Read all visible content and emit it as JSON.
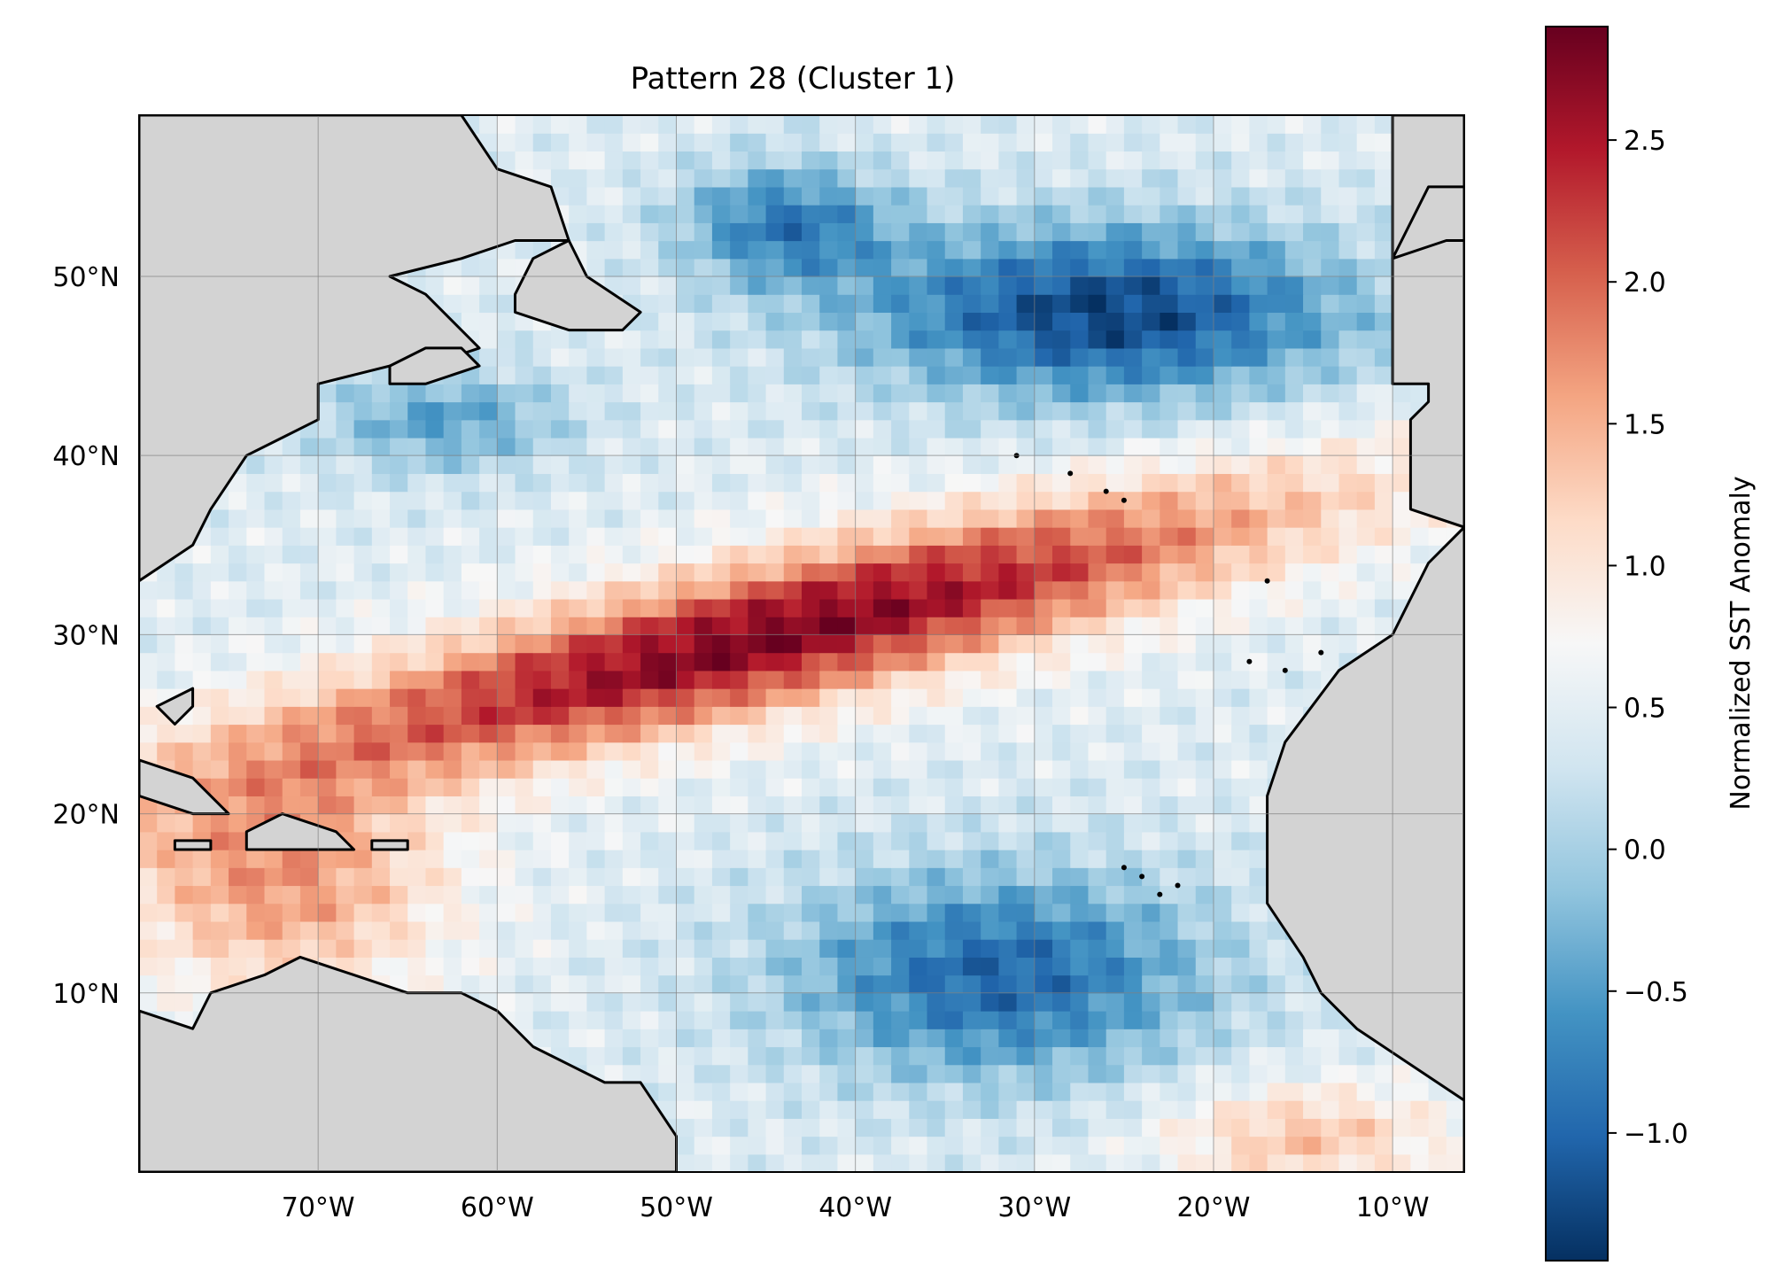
{
  "chart_data": {
    "type": "heatmap",
    "title": "Pattern 28 (Cluster 1)",
    "map": {
      "projection": "PlateCarree",
      "lon_range": [
        -80,
        -6
      ],
      "lat_range": [
        0,
        59
      ],
      "land_color": "#d3d3d3",
      "coastline_color": "#000000",
      "gridlines": true,
      "xticks": [
        {
          "value": -70,
          "label": "70°W"
        },
        {
          "value": -60,
          "label": "60°W"
        },
        {
          "value": -50,
          "label": "50°W"
        },
        {
          "value": -40,
          "label": "40°W"
        },
        {
          "value": -30,
          "label": "30°W"
        },
        {
          "value": -20,
          "label": "20°W"
        },
        {
          "value": -10,
          "label": "10°W"
        }
      ],
      "yticks": [
        {
          "value": 10,
          "label": "10°N"
        },
        {
          "value": 20,
          "label": "20°N"
        },
        {
          "value": 30,
          "label": "30°N"
        },
        {
          "value": 40,
          "label": "40°N"
        },
        {
          "value": 50,
          "label": "50°N"
        }
      ]
    },
    "field": {
      "grid_resolution_deg": 1,
      "description_of_pattern": [
        {
          "feature": "warm-band",
          "center_lon": -40,
          "center_lat": 29,
          "peak": 2.85
        },
        {
          "feature": "warm-band",
          "center_lon": -52,
          "center_lat": 25,
          "peak": 2.7
        },
        {
          "feature": "warm-band",
          "center_lon": -60,
          "center_lat": 24,
          "peak": 2.5
        },
        {
          "feature": "cold-north",
          "center_lon": -30,
          "center_lat": 50,
          "peak": -1.35
        },
        {
          "feature": "cold-south",
          "center_lon": -35,
          "center_lat": 6,
          "peak": -1.0
        }
      ]
    },
    "colorbar": {
      "label": "Normalized SST Anomaly",
      "cmap": "RdBu_r",
      "vmin": -1.45,
      "vmax": 2.9,
      "ticks": [
        {
          "value": -1.0,
          "label": "−1.0"
        },
        {
          "value": -0.5,
          "label": "−0.5"
        },
        {
          "value": 0.0,
          "label": "0.0"
        },
        {
          "value": 0.5,
          "label": "0.5"
        },
        {
          "value": 1.0,
          "label": "1.0"
        },
        {
          "value": 1.5,
          "label": "1.5"
        },
        {
          "value": 2.0,
          "label": "2.0"
        },
        {
          "value": 2.5,
          "label": "2.5"
        }
      ],
      "colors": [
        "#053061",
        "#2166ac",
        "#4393c3",
        "#92c5de",
        "#d1e5f0",
        "#f7f7f7",
        "#fddbc7",
        "#f4a582",
        "#d6604d",
        "#b2182b",
        "#67001f"
      ]
    }
  }
}
